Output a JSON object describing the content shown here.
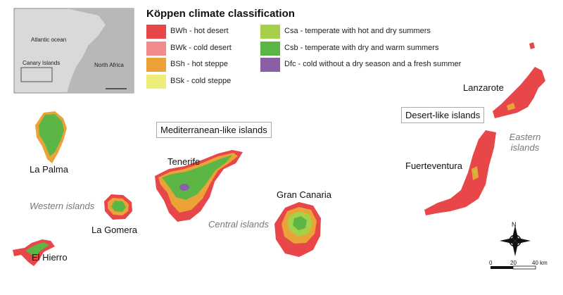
{
  "legend": {
    "title": "Köppen climate classification",
    "items": [
      {
        "label": "BWh - hot desert",
        "color": "#e8474a"
      },
      {
        "label": "BWk - cold desert",
        "color": "#f28b8e"
      },
      {
        "label": "BSh - hot steppe",
        "color": "#eba236"
      },
      {
        "label": "BSk - cold steppe",
        "color": "#eded7a"
      },
      {
        "label": "Csa - temperate with hot and dry summers",
        "color": "#a6d04a"
      },
      {
        "label": "Csb - temperate with dry and warm summers",
        "color": "#5cb646"
      },
      {
        "label": "Dfc - cold without a dry season and a fresh summer",
        "color": "#8a5fa8"
      }
    ]
  },
  "inset": {
    "ocean": "Atlantic ocean",
    "islands": "Canary Islands",
    "continent": "North Africa"
  },
  "islands": {
    "la_palma": "La Palma",
    "la_gomera": "La Gomera",
    "el_hierro": "El Hierro",
    "tenerife": "Tenerife",
    "gran_canaria": "Gran Canaria",
    "lanzarote": "Lanzarote",
    "fuerteventura": "Fuerteventura"
  },
  "groups": {
    "western": "Western islands",
    "central": "Central islands",
    "eastern": "Eastern islands",
    "mediterranean": "Mediterranean-like islands",
    "desert": "Desert-like islands"
  },
  "scale": {
    "start": "0",
    "mid": "20",
    "end": "40 km"
  },
  "compass": "N"
}
